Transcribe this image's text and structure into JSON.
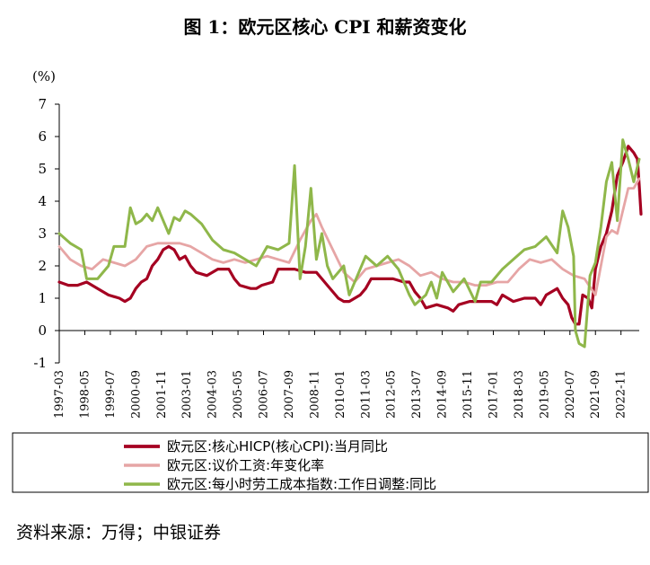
{
  "title": "图 1：欧元区核心 CPI 和薪资变化",
  "source": "资料来源：万得；中银证券",
  "chart_data": {
    "type": "line",
    "unit_label": "(%)",
    "ylim": [
      -1,
      7
    ],
    "yticks": [
      -1,
      0,
      1,
      2,
      3,
      4,
      5,
      6,
      7
    ],
    "xlim": [
      "1997-03",
      "2023-09"
    ],
    "xticks": [
      "1997-03",
      "1998-05",
      "1999-07",
      "2000-09",
      "2001-11",
      "2003-01",
      "2004-03",
      "2005-05",
      "2006-07",
      "2007-09",
      "2008-11",
      "2010-01",
      "2011-03",
      "2012-05",
      "2013-07",
      "2014-09",
      "2015-11",
      "2017-01",
      "2018-03",
      "2019-05",
      "2020-07",
      "2021-09",
      "2022-11"
    ],
    "legend_position": "bottom",
    "series": [
      {
        "name": "欧元区:核心HICP(核心CPI):当月同比",
        "color": "#a50021",
        "width": 3.2,
        "points": [
          [
            "1997-03",
            1.5
          ],
          [
            "1997-08",
            1.4
          ],
          [
            "1998-01",
            1.4
          ],
          [
            "1998-06",
            1.5
          ],
          [
            "1998-12",
            1.3
          ],
          [
            "1999-06",
            1.1
          ],
          [
            "1999-12",
            1.0
          ],
          [
            "2000-03",
            0.9
          ],
          [
            "2000-06",
            1.0
          ],
          [
            "2000-09",
            1.3
          ],
          [
            "2000-12",
            1.5
          ],
          [
            "2001-03",
            1.6
          ],
          [
            "2001-06",
            2.0
          ],
          [
            "2001-09",
            2.2
          ],
          [
            "2001-12",
            2.5
          ],
          [
            "2002-03",
            2.6
          ],
          [
            "2002-06",
            2.5
          ],
          [
            "2002-09",
            2.2
          ],
          [
            "2002-12",
            2.3
          ],
          [
            "2003-03",
            2.0
          ],
          [
            "2003-06",
            1.8
          ],
          [
            "2003-12",
            1.7
          ],
          [
            "2004-06",
            1.9
          ],
          [
            "2004-12",
            1.9
          ],
          [
            "2005-03",
            1.6
          ],
          [
            "2005-06",
            1.4
          ],
          [
            "2005-12",
            1.3
          ],
          [
            "2006-03",
            1.3
          ],
          [
            "2006-06",
            1.4
          ],
          [
            "2006-12",
            1.5
          ],
          [
            "2007-03",
            1.9
          ],
          [
            "2007-06",
            1.9
          ],
          [
            "2007-12",
            1.9
          ],
          [
            "2008-06",
            1.8
          ],
          [
            "2008-12",
            1.8
          ],
          [
            "2009-03",
            1.6
          ],
          [
            "2009-06",
            1.4
          ],
          [
            "2009-12",
            1.0
          ],
          [
            "2010-03",
            0.9
          ],
          [
            "2010-06",
            0.9
          ],
          [
            "2010-12",
            1.1
          ],
          [
            "2011-03",
            1.3
          ],
          [
            "2011-06",
            1.6
          ],
          [
            "2011-12",
            1.6
          ],
          [
            "2012-06",
            1.6
          ],
          [
            "2012-12",
            1.5
          ],
          [
            "2013-03",
            1.5
          ],
          [
            "2013-06",
            1.2
          ],
          [
            "2013-09",
            1.0
          ],
          [
            "2013-12",
            0.7
          ],
          [
            "2014-06",
            0.8
          ],
          [
            "2014-12",
            0.7
          ],
          [
            "2015-03",
            0.6
          ],
          [
            "2015-06",
            0.8
          ],
          [
            "2015-12",
            0.9
          ],
          [
            "2016-06",
            0.9
          ],
          [
            "2016-12",
            0.9
          ],
          [
            "2017-03",
            0.8
          ],
          [
            "2017-06",
            1.1
          ],
          [
            "2017-12",
            0.9
          ],
          [
            "2018-06",
            1.0
          ],
          [
            "2018-12",
            1.0
          ],
          [
            "2019-03",
            0.8
          ],
          [
            "2019-06",
            1.1
          ],
          [
            "2019-12",
            1.3
          ],
          [
            "2020-03",
            1.0
          ],
          [
            "2020-06",
            0.8
          ],
          [
            "2020-08",
            0.4
          ],
          [
            "2020-10",
            0.2
          ],
          [
            "2020-12",
            0.2
          ],
          [
            "2021-02",
            1.1
          ],
          [
            "2021-05",
            1.0
          ],
          [
            "2021-07",
            0.7
          ],
          [
            "2021-09",
            1.9
          ],
          [
            "2021-12",
            2.6
          ],
          [
            "2022-03",
            3.0
          ],
          [
            "2022-06",
            3.7
          ],
          [
            "2022-09",
            4.8
          ],
          [
            "2022-12",
            5.2
          ],
          [
            "2023-03",
            5.7
          ],
          [
            "2023-06",
            5.5
          ],
          [
            "2023-08",
            5.3
          ],
          [
            "2023-09",
            4.5
          ],
          [
            "2023-10",
            3.6
          ]
        ]
      },
      {
        "name": "欧元区:议价工资:年变化率",
        "color": "#e6a5a5",
        "width": 2.8,
        "points": [
          [
            "1997-03",
            2.6
          ],
          [
            "1997-09",
            2.2
          ],
          [
            "1998-03",
            2.0
          ],
          [
            "1998-09",
            1.9
          ],
          [
            "1999-03",
            2.2
          ],
          [
            "1999-09",
            2.1
          ],
          [
            "2000-03",
            2.0
          ],
          [
            "2000-09",
            2.2
          ],
          [
            "2001-03",
            2.6
          ],
          [
            "2001-09",
            2.7
          ],
          [
            "2002-03",
            2.7
          ],
          [
            "2002-09",
            2.7
          ],
          [
            "2003-03",
            2.6
          ],
          [
            "2003-09",
            2.4
          ],
          [
            "2004-03",
            2.2
          ],
          [
            "2004-09",
            2.1
          ],
          [
            "2005-03",
            2.2
          ],
          [
            "2005-09",
            2.1
          ],
          [
            "2006-03",
            2.2
          ],
          [
            "2006-09",
            2.3
          ],
          [
            "2007-03",
            2.2
          ],
          [
            "2007-09",
            2.1
          ],
          [
            "2008-03",
            2.8
          ],
          [
            "2008-09",
            3.4
          ],
          [
            "2008-12",
            3.6
          ],
          [
            "2009-03",
            3.2
          ],
          [
            "2009-09",
            2.5
          ],
          [
            "2010-03",
            1.8
          ],
          [
            "2010-09",
            1.5
          ],
          [
            "2011-03",
            1.9
          ],
          [
            "2011-09",
            2.0
          ],
          [
            "2012-03",
            2.1
          ],
          [
            "2012-09",
            2.2
          ],
          [
            "2013-03",
            2.0
          ],
          [
            "2013-09",
            1.7
          ],
          [
            "2014-03",
            1.8
          ],
          [
            "2014-09",
            1.6
          ],
          [
            "2015-03",
            1.5
          ],
          [
            "2015-09",
            1.5
          ],
          [
            "2016-03",
            1.4
          ],
          [
            "2016-09",
            1.4
          ],
          [
            "2017-03",
            1.5
          ],
          [
            "2017-09",
            1.5
          ],
          [
            "2018-03",
            1.9
          ],
          [
            "2018-09",
            2.2
          ],
          [
            "2019-03",
            2.1
          ],
          [
            "2019-09",
            2.2
          ],
          [
            "2020-03",
            1.9
          ],
          [
            "2020-09",
            1.7
          ],
          [
            "2021-03",
            1.6
          ],
          [
            "2021-09",
            1.1
          ],
          [
            "2022-03",
            2.9
          ],
          [
            "2022-06",
            3.1
          ],
          [
            "2022-09",
            3.0
          ],
          [
            "2022-12",
            3.7
          ],
          [
            "2023-03",
            4.4
          ],
          [
            "2023-06",
            4.4
          ],
          [
            "2023-09",
            4.7
          ]
        ]
      },
      {
        "name": "欧元区:每小时劳工成本指数:工作日调整:同比",
        "color": "#8fb74a",
        "width": 3.0,
        "points": [
          [
            "1997-03",
            3.0
          ],
          [
            "1997-09",
            2.7
          ],
          [
            "1998-03",
            2.5
          ],
          [
            "1998-06",
            1.6
          ],
          [
            "1998-12",
            1.6
          ],
          [
            "1999-06",
            2.0
          ],
          [
            "1999-09",
            2.6
          ],
          [
            "2000-03",
            2.6
          ],
          [
            "2000-06",
            3.8
          ],
          [
            "2000-09",
            3.3
          ],
          [
            "2000-12",
            3.4
          ],
          [
            "2001-03",
            3.6
          ],
          [
            "2001-06",
            3.4
          ],
          [
            "2001-09",
            3.8
          ],
          [
            "2002-03",
            3.0
          ],
          [
            "2002-06",
            3.5
          ],
          [
            "2002-09",
            3.4
          ],
          [
            "2002-12",
            3.7
          ],
          [
            "2003-03",
            3.6
          ],
          [
            "2003-09",
            3.3
          ],
          [
            "2004-03",
            2.8
          ],
          [
            "2004-09",
            2.5
          ],
          [
            "2005-03",
            2.4
          ],
          [
            "2005-09",
            2.2
          ],
          [
            "2006-03",
            2.0
          ],
          [
            "2006-09",
            2.6
          ],
          [
            "2007-03",
            2.5
          ],
          [
            "2007-09",
            2.7
          ],
          [
            "2007-12",
            5.1
          ],
          [
            "2008-03",
            1.6
          ],
          [
            "2008-06",
            2.6
          ],
          [
            "2008-09",
            4.4
          ],
          [
            "2008-12",
            2.2
          ],
          [
            "2009-03",
            3.0
          ],
          [
            "2009-06",
            2.0
          ],
          [
            "2009-09",
            1.6
          ],
          [
            "2010-03",
            2.0
          ],
          [
            "2010-06",
            1.1
          ],
          [
            "2010-12",
            1.9
          ],
          [
            "2011-03",
            2.3
          ],
          [
            "2011-09",
            2.0
          ],
          [
            "2012-03",
            2.3
          ],
          [
            "2012-09",
            1.9
          ],
          [
            "2013-03",
            1.1
          ],
          [
            "2013-06",
            0.8
          ],
          [
            "2013-12",
            1.1
          ],
          [
            "2014-03",
            1.5
          ],
          [
            "2014-06",
            1.0
          ],
          [
            "2014-09",
            1.8
          ],
          [
            "2015-03",
            1.2
          ],
          [
            "2015-09",
            1.6
          ],
          [
            "2016-03",
            0.9
          ],
          [
            "2016-06",
            1.5
          ],
          [
            "2016-12",
            1.5
          ],
          [
            "2017-06",
            1.9
          ],
          [
            "2017-12",
            2.2
          ],
          [
            "2018-06",
            2.5
          ],
          [
            "2018-12",
            2.6
          ],
          [
            "2019-06",
            2.9
          ],
          [
            "2019-12",
            2.4
          ],
          [
            "2020-03",
            3.7
          ],
          [
            "2020-06",
            3.2
          ],
          [
            "2020-09",
            2.3
          ],
          [
            "2020-10",
            0.0
          ],
          [
            "2020-12",
            -0.4
          ],
          [
            "2021-03",
            -0.5
          ],
          [
            "2021-06",
            1.7
          ],
          [
            "2021-09",
            2.1
          ],
          [
            "2021-12",
            3.2
          ],
          [
            "2022-03",
            4.6
          ],
          [
            "2022-06",
            5.2
          ],
          [
            "2022-09",
            3.4
          ],
          [
            "2022-12",
            5.9
          ],
          [
            "2023-03",
            5.3
          ],
          [
            "2023-06",
            4.6
          ],
          [
            "2023-09",
            5.3
          ]
        ]
      }
    ]
  }
}
